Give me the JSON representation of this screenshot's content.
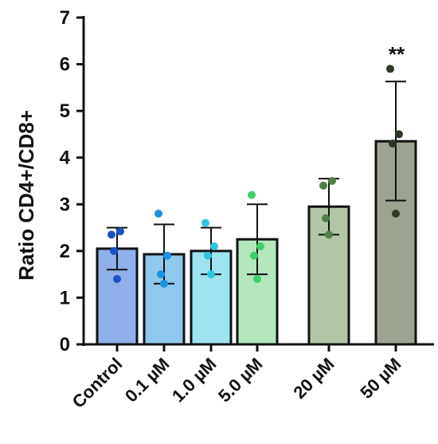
{
  "chart_data": {
    "type": "bar",
    "title": "",
    "xlabel": "",
    "ylabel": "Ratio CD4+/CD8+",
    "ylim": [
      0,
      7
    ],
    "yticks": [
      0,
      1,
      2,
      3,
      4,
      5,
      6,
      7
    ],
    "grid": false,
    "legend": "none",
    "categories": [
      "Control",
      "0.1 µM",
      "1.0 µM",
      "5.0 µM",
      "20 µM",
      "50 µM"
    ],
    "means": [
      2.05,
      1.93,
      2.0,
      2.25,
      2.95,
      4.35
    ],
    "error_low": [
      1.6,
      1.3,
      1.5,
      1.5,
      2.35,
      3.08
    ],
    "error_high": [
      2.5,
      2.57,
      2.5,
      3.0,
      3.55,
      5.63
    ],
    "points": [
      [
        2.35,
        2.42,
        2.0,
        1.4
      ],
      [
        2.8,
        1.9,
        1.5,
        1.3
      ],
      [
        2.6,
        2.1,
        1.9,
        1.5
      ],
      [
        3.2,
        2.1,
        1.9,
        1.4
      ],
      [
        3.4,
        3.5,
        2.7,
        2.35
      ],
      [
        5.9,
        4.5,
        4.3,
        2.8
      ]
    ],
    "annotations": [
      {
        "category": "50 µM",
        "text": "**"
      }
    ],
    "colors": {
      "bar_fills": [
        "#8fb0ea",
        "#8ec8ef",
        "#9de4f0",
        "#b3e7bd",
        "#b2c6a7",
        "#9ca390"
      ],
      "point_colors": [
        "#1752c6",
        "#1b91e0",
        "#2fc4dd",
        "#3fce6a",
        "#4f7f46",
        "#2b3a22"
      ],
      "axis": "#111111"
    }
  }
}
